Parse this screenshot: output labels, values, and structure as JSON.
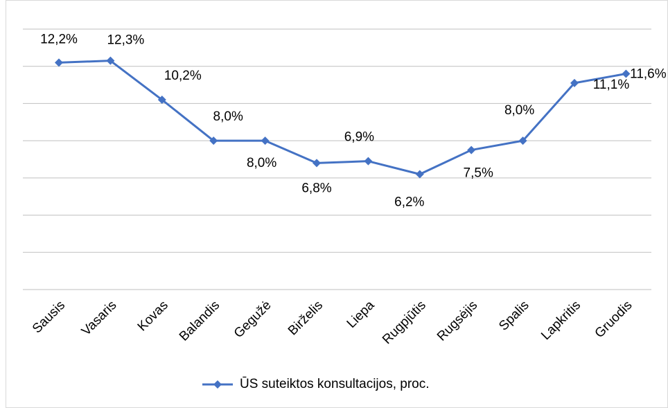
{
  "chart_data": {
    "type": "line",
    "categories": [
      "Sausis",
      "Vasaris",
      "Kovas",
      "Balandis",
      "Gegužė",
      "Birželis",
      "Liepa",
      "Rugpjūtis",
      "Rugsėjis",
      "Spalis",
      "Lapkritis",
      "Gruodis"
    ],
    "series": [
      {
        "name": "ŪS suteiktos konsultacijos, proc.",
        "color": "#4472c4",
        "values": [
          12.2,
          12.3,
          10.2,
          8.0,
          8.0,
          6.8,
          6.9,
          6.2,
          7.5,
          8.0,
          11.1,
          11.6
        ],
        "value_labels": [
          "12,2%",
          "12,3%",
          "10,2%",
          "8,0%",
          "8,0%",
          "6,8%",
          "6,9%",
          "6,2%",
          "7,5%",
          "8,0%",
          "11,1%",
          "11,6%"
        ]
      }
    ],
    "ylim": [
      0,
      14
    ],
    "yticks": [
      0,
      2,
      4,
      6,
      8,
      10,
      12,
      14
    ],
    "grid": true,
    "legend": "bottom"
  }
}
